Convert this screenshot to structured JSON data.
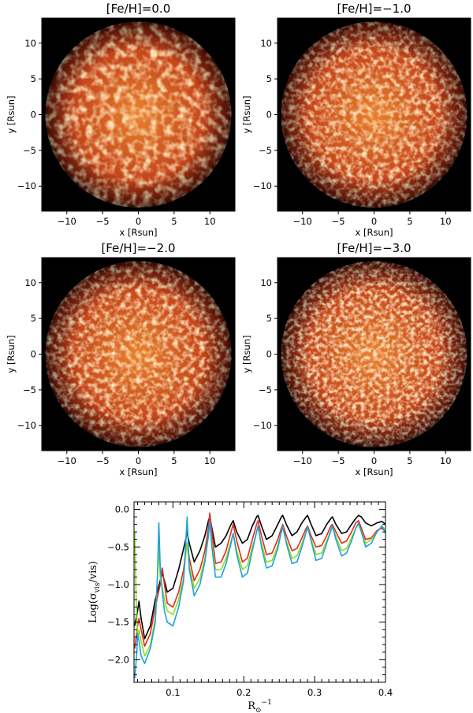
{
  "chart_data": [
    {
      "type": "heatmap",
      "title": "[Fe/H]=0.0",
      "xlabel": "x [Rsun]",
      "ylabel": "y [Rsun]",
      "xlim": [
        -13.5,
        13.5
      ],
      "ylim": [
        -13.5,
        13.5
      ],
      "xticks": [
        -10,
        -5,
        0,
        5,
        10
      ],
      "yticks": [
        -10,
        -5,
        0,
        5,
        10
      ],
      "tick_labels": [
        "−10",
        "−5",
        "0",
        "5",
        "10"
      ],
      "content": "stellar disk intensity map, radius 13 Rsun",
      "granulation": "large"
    },
    {
      "type": "heatmap",
      "title": "[Fe/H]=−1.0",
      "xlabel": "x [Rsun]",
      "ylabel": "y [Rsun]",
      "xlim": [
        -13.5,
        13.5
      ],
      "ylim": [
        -13.5,
        13.5
      ],
      "xticks": [
        -10,
        -5,
        0,
        5,
        10
      ],
      "yticks": [
        -10,
        -5,
        0,
        5,
        10
      ],
      "tick_labels": [
        "−10",
        "−5",
        "0",
        "5",
        "10"
      ],
      "content": "stellar disk intensity map, radius 13 Rsun",
      "granulation": "medium"
    },
    {
      "type": "heatmap",
      "title": "[Fe/H]=−2.0",
      "xlabel": "x [Rsun]",
      "ylabel": "y [Rsun]",
      "xlim": [
        -13.5,
        13.5
      ],
      "ylim": [
        -13.5,
        13.5
      ],
      "xticks": [
        -10,
        -5,
        0,
        5,
        10
      ],
      "yticks": [
        -10,
        -5,
        0,
        5,
        10
      ],
      "tick_labels": [
        "−10",
        "−5",
        "0",
        "5",
        "10"
      ],
      "content": "stellar disk intensity map, radius 13 Rsun",
      "granulation": "medium"
    },
    {
      "type": "heatmap",
      "title": "[Fe/H]=−3.0",
      "xlabel": "x [Rsun]",
      "ylabel": "y [Rsun]",
      "xlim": [
        -13.5,
        13.5
      ],
      "ylim": [
        -13.5,
        13.5
      ],
      "xticks": [
        -10,
        -5,
        0,
        5,
        10
      ],
      "yticks": [
        -10,
        -5,
        0,
        5,
        10
      ],
      "tick_labels": [
        "−10",
        "−5",
        "0",
        "5",
        "10"
      ],
      "content": "stellar disk intensity map, radius 13 Rsun",
      "granulation": "small"
    },
    {
      "type": "line",
      "xlabel": "R⊙⁻¹",
      "ylabel": "Log(σvis/vis)",
      "ylabel_parts": [
        "Log(σ",
        "vis",
        "/vis)"
      ],
      "xlabel_parts": [
        "R",
        "⊙",
        "−1"
      ],
      "xlim": [
        0.045,
        0.4
      ],
      "ylim": [
        -2.3,
        0.1
      ],
      "xticks": [
        0.1,
        0.2,
        0.3,
        0.4
      ],
      "xtick_labels": [
        "0.1",
        "0.2",
        "0.3",
        "0.4"
      ],
      "yticks": [
        -2.0,
        -1.5,
        -1.0,
        -0.5,
        0.0
      ],
      "ytick_labels": [
        "−2.0",
        "−1.5",
        "−1.0",
        "−0.5",
        "0.0"
      ],
      "series": [
        {
          "name": "[Fe/H]=0.0",
          "color": "#000000",
          "x": [
            0.046,
            0.05,
            0.052,
            0.055,
            0.06,
            0.068,
            0.075,
            0.082,
            0.085,
            0.088,
            0.092,
            0.1,
            0.108,
            0.115,
            0.118,
            0.12,
            0.123,
            0.13,
            0.138,
            0.145,
            0.15,
            0.152,
            0.155,
            0.16,
            0.168,
            0.175,
            0.182,
            0.185,
            0.19,
            0.198,
            0.205,
            0.212,
            0.218,
            0.22,
            0.225,
            0.232,
            0.24,
            0.248,
            0.253,
            0.255,
            0.26,
            0.268,
            0.275,
            0.282,
            0.288,
            0.29,
            0.295,
            0.302,
            0.31,
            0.317,
            0.323,
            0.325,
            0.33,
            0.338,
            0.345,
            0.352,
            0.358,
            0.362,
            0.366,
            0.372,
            0.38,
            0.388,
            0.395,
            0.4
          ],
          "y": [
            -1.55,
            -1.35,
            -1.22,
            -1.45,
            -1.72,
            -1.55,
            -1.2,
            -0.95,
            -0.85,
            -0.95,
            -1.1,
            -1.05,
            -0.8,
            -0.52,
            -0.4,
            -0.3,
            -0.45,
            -0.7,
            -0.55,
            -0.35,
            -0.15,
            -0.1,
            -0.25,
            -0.5,
            -0.45,
            -0.35,
            -0.2,
            -0.15,
            -0.3,
            -0.45,
            -0.4,
            -0.22,
            -0.1,
            -0.08,
            -0.22,
            -0.4,
            -0.35,
            -0.2,
            -0.1,
            -0.08,
            -0.2,
            -0.35,
            -0.3,
            -0.18,
            -0.1,
            -0.08,
            -0.2,
            -0.35,
            -0.32,
            -0.2,
            -0.12,
            -0.1,
            -0.2,
            -0.32,
            -0.3,
            -0.2,
            -0.12,
            -0.08,
            -0.1,
            -0.18,
            -0.22,
            -0.18,
            -0.16,
            -0.2
          ]
        },
        {
          "name": "[Fe/H]=−1.0",
          "color": "#e8261b",
          "x": [
            0.046,
            0.05,
            0.052,
            0.055,
            0.06,
            0.068,
            0.075,
            0.082,
            0.085,
            0.088,
            0.092,
            0.1,
            0.108,
            0.115,
            0.118,
            0.12,
            0.123,
            0.13,
            0.138,
            0.145,
            0.15,
            0.152,
            0.155,
            0.16,
            0.168,
            0.175,
            0.182,
            0.185,
            0.19,
            0.198,
            0.205,
            0.212,
            0.218,
            0.22,
            0.225,
            0.232,
            0.24,
            0.248,
            0.253,
            0.255,
            0.26,
            0.268,
            0.275,
            0.282,
            0.288,
            0.29,
            0.295,
            0.302,
            0.31,
            0.317,
            0.323,
            0.325,
            0.33,
            0.338,
            0.345,
            0.352,
            0.358,
            0.362,
            0.366,
            0.372,
            0.38,
            0.388,
            0.395,
            0.4
          ],
          "y": [
            -1.85,
            -1.55,
            -1.45,
            -1.6,
            -1.82,
            -1.65,
            -1.3,
            -1.0,
            -0.78,
            -1.0,
            -1.25,
            -1.3,
            -1.1,
            -0.8,
            -0.58,
            -0.45,
            -0.65,
            -0.95,
            -0.8,
            -0.55,
            -0.25,
            -0.05,
            -0.3,
            -0.72,
            -0.7,
            -0.55,
            -0.3,
            -0.2,
            -0.42,
            -0.7,
            -0.65,
            -0.4,
            -0.2,
            -0.15,
            -0.35,
            -0.6,
            -0.58,
            -0.4,
            -0.25,
            -0.2,
            -0.35,
            -0.55,
            -0.52,
            -0.38,
            -0.25,
            -0.22,
            -0.35,
            -0.5,
            -0.48,
            -0.35,
            -0.22,
            -0.2,
            -0.3,
            -0.45,
            -0.42,
            -0.3,
            -0.18,
            -0.15,
            -0.25,
            -0.4,
            -0.38,
            -0.28,
            -0.25,
            -0.3
          ]
        },
        {
          "name": "[Fe/H]=−2.0",
          "color": "#8fde1e",
          "x": [
            0.046,
            0.048,
            0.05,
            0.052,
            0.055,
            0.06,
            0.068,
            0.075,
            0.08,
            0.082,
            0.085,
            0.088,
            0.092,
            0.1,
            0.108,
            0.115,
            0.118,
            0.12,
            0.123,
            0.13,
            0.138,
            0.145,
            0.15,
            0.152,
            0.155,
            0.16,
            0.168,
            0.175,
            0.182,
            0.185,
            0.19,
            0.198,
            0.205,
            0.212,
            0.218,
            0.22,
            0.225,
            0.232,
            0.24,
            0.248,
            0.253,
            0.255,
            0.26,
            0.268,
            0.275,
            0.282,
            0.288,
            0.29,
            0.295,
            0.302,
            0.31,
            0.317,
            0.323,
            0.325,
            0.33,
            0.338,
            0.345,
            0.352,
            0.358,
            0.362,
            0.366,
            0.372,
            0.38,
            0.388,
            0.395,
            0.4
          ],
          "y": [
            -0.3,
            -1.2,
            -1.7,
            -1.6,
            -1.75,
            -1.95,
            -1.8,
            -1.45,
            -0.5,
            -0.9,
            -1.05,
            -1.2,
            -1.35,
            -1.4,
            -1.2,
            -0.9,
            -0.6,
            -0.45,
            -0.75,
            -1.05,
            -0.92,
            -0.65,
            -0.35,
            -0.18,
            -0.45,
            -0.8,
            -0.8,
            -0.65,
            -0.42,
            -0.32,
            -0.55,
            -0.8,
            -0.75,
            -0.5,
            -0.3,
            -0.25,
            -0.45,
            -0.7,
            -0.68,
            -0.48,
            -0.3,
            -0.25,
            -0.42,
            -0.65,
            -0.62,
            -0.45,
            -0.3,
            -0.25,
            -0.4,
            -0.6,
            -0.58,
            -0.42,
            -0.28,
            -0.22,
            -0.36,
            -0.55,
            -0.52,
            -0.38,
            -0.25,
            -0.2,
            -0.3,
            -0.45,
            -0.4,
            -0.3,
            -0.22,
            -0.28
          ]
        },
        {
          "name": "[Fe/H]=−3.0",
          "color": "#1da2d8",
          "x": [
            0.046,
            0.049,
            0.05,
            0.052,
            0.055,
            0.06,
            0.068,
            0.075,
            0.078,
            0.08,
            0.082,
            0.085,
            0.088,
            0.092,
            0.1,
            0.108,
            0.115,
            0.118,
            0.12,
            0.123,
            0.13,
            0.138,
            0.145,
            0.15,
            0.152,
            0.155,
            0.16,
            0.168,
            0.175,
            0.182,
            0.185,
            0.19,
            0.198,
            0.205,
            0.212,
            0.218,
            0.22,
            0.225,
            0.232,
            0.24,
            0.248,
            0.253,
            0.255,
            0.26,
            0.268,
            0.275,
            0.282,
            0.288,
            0.29,
            0.295,
            0.302,
            0.31,
            0.317,
            0.323,
            0.325,
            0.33,
            0.338,
            0.345,
            0.352,
            0.358,
            0.362,
            0.366,
            0.372,
            0.38,
            0.388,
            0.395,
            0.4
          ],
          "y": [
            -2.25,
            -1.9,
            -1.65,
            -1.75,
            -1.95,
            -2.05,
            -1.85,
            -1.5,
            -0.9,
            -0.18,
            -0.75,
            -1.1,
            -1.35,
            -1.5,
            -1.55,
            -1.3,
            -0.95,
            -0.45,
            -0.1,
            -0.8,
            -1.15,
            -1.0,
            -0.7,
            -0.35,
            -0.15,
            -0.5,
            -0.9,
            -0.9,
            -0.72,
            -0.45,
            -0.32,
            -0.6,
            -0.9,
            -0.85,
            -0.55,
            -0.3,
            -0.22,
            -0.5,
            -0.78,
            -0.75,
            -0.52,
            -0.3,
            -0.22,
            -0.45,
            -0.72,
            -0.7,
            -0.5,
            -0.3,
            -0.22,
            -0.42,
            -0.68,
            -0.65,
            -0.45,
            -0.28,
            -0.22,
            -0.4,
            -0.62,
            -0.58,
            -0.42,
            -0.25,
            -0.18,
            -0.3,
            -0.5,
            -0.45,
            -0.3,
            -0.22,
            -0.32
          ]
        }
      ]
    }
  ]
}
